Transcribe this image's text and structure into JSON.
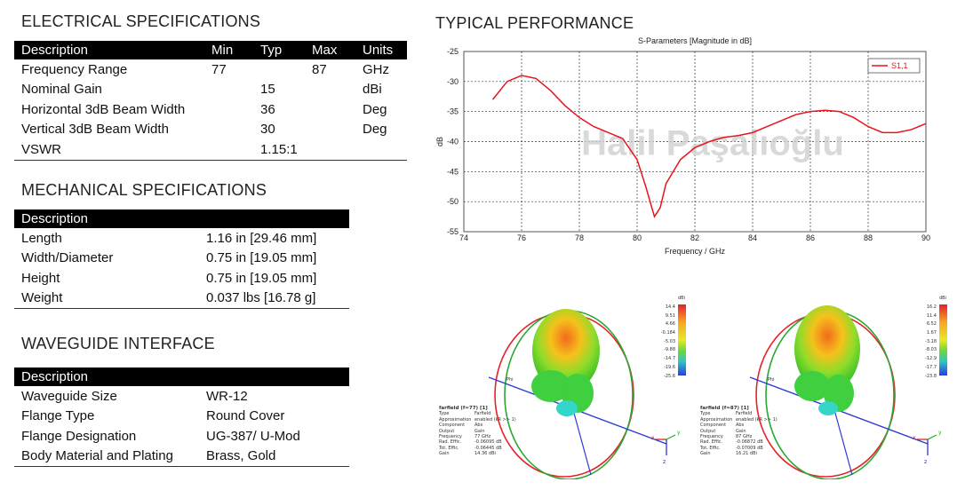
{
  "electrical": {
    "title": "ELECTRICAL SPECIFICATIONS",
    "headers": [
      "Description",
      "Min",
      "Typ",
      "Max",
      "Units"
    ],
    "rows": [
      [
        "Frequency Range",
        "77",
        "",
        "87",
        "GHz"
      ],
      [
        "Nominal Gain",
        "",
        "15",
        "",
        "dBi"
      ],
      [
        "Horizontal 3dB Beam Width",
        "",
        "36",
        "",
        "Deg"
      ],
      [
        "Vertical 3dB Beam Width",
        "",
        "30",
        "",
        "Deg"
      ],
      [
        "VSWR",
        "",
        "1.15:1",
        "",
        ""
      ]
    ]
  },
  "mechanical": {
    "title": "MECHANICAL SPECIFICATIONS",
    "header": "Description",
    "rows": [
      [
        "Length",
        "1.16 in [29.46 mm]"
      ],
      [
        "Width/Diameter",
        "0.75 in [19.05 mm]"
      ],
      [
        "Height",
        "0.75 in [19.05 mm]"
      ],
      [
        "Weight",
        "0.037 lbs [16.78 g]"
      ]
    ]
  },
  "waveguide": {
    "title": "WAVEGUIDE INTERFACE",
    "header": "Description",
    "rows": [
      [
        "Waveguide Size",
        "WR-12"
      ],
      [
        "Flange Type",
        "Round Cover"
      ],
      [
        "Flange Designation",
        "UG-387/ U-Mod"
      ],
      [
        "Body Material and Plating",
        "Brass, Gold"
      ]
    ]
  },
  "performance": {
    "title": "TYPICAL PERFORMANCE",
    "watermark": "Halil Paşalıoğlu"
  },
  "chart_data": {
    "type": "line",
    "title": "S-Parameters [Magnitude in dB]",
    "xlabel": "Frequency / GHz",
    "ylabel": "dB",
    "xlim": [
      74,
      90
    ],
    "ylim": [
      -55,
      -25
    ],
    "xticks": [
      74,
      76,
      78,
      80,
      82,
      84,
      86,
      88,
      90
    ],
    "yticks": [
      -25,
      -30,
      -35,
      -40,
      -45,
      -50,
      -55
    ],
    "grid": true,
    "legend": "top-right",
    "series": [
      {
        "name": "S1,1",
        "color": "#e8141b",
        "x": [
          75,
          75.5,
          76,
          76.5,
          77,
          77.5,
          78,
          78.5,
          79,
          79.5,
          80,
          80.3,
          80.6,
          80.8,
          81,
          81.5,
          82,
          82.5,
          83,
          83.5,
          84,
          84.5,
          85,
          85.5,
          86,
          86.5,
          87,
          87.5,
          88,
          88.5,
          89,
          89.5,
          90
        ],
        "y": [
          -33,
          -30,
          -29,
          -29.5,
          -31.5,
          -34,
          -36,
          -37.5,
          -38.5,
          -39.5,
          -43,
          -47.5,
          -52.5,
          -51,
          -47,
          -43,
          -41,
          -40,
          -39.3,
          -39,
          -38.5,
          -37.5,
          -36.5,
          -35.5,
          -35,
          -34.8,
          -35,
          -36,
          -37.5,
          -38.5,
          -38.5,
          -38,
          -37
        ]
      }
    ]
  },
  "patterns": [
    {
      "scale": {
        "unit": "dBi",
        "values": [
          "14.4",
          "9.51",
          "4.66",
          "-0.184",
          "-5.03",
          "-9.88",
          "-14.7",
          "-19.6",
          "-25.6"
        ]
      },
      "farfield": {
        "title": "farfield (f=77) [1]",
        "rows": [
          [
            "Type",
            "Farfield"
          ],
          [
            "Approximation",
            "enabled (kR >> 1)"
          ],
          [
            "Component",
            "Abs"
          ],
          [
            "Output",
            "Gain"
          ],
          [
            "Frequency",
            "77 GHz"
          ],
          [
            "Rad. Effic.",
            "-0.06095 dB"
          ],
          [
            "Tot. Effic.",
            "-0.06445 dB"
          ],
          [
            "Gain",
            "14.36 dBi"
          ]
        ]
      },
      "axes": {
        "x": "x",
        "y": "y",
        "z": "z",
        "theta": "Phi"
      }
    },
    {
      "scale": {
        "unit": "dBi",
        "values": [
          "16.2",
          "11.4",
          "6.52",
          "1.67",
          "-3.18",
          "-8.03",
          "-12.9",
          "-17.7",
          "-23.8"
        ]
      },
      "farfield": {
        "title": "farfield (f=87) [1]",
        "rows": [
          [
            "Type",
            "Farfield"
          ],
          [
            "Approximation",
            "enabled (kR >> 1)"
          ],
          [
            "Component",
            "Abs"
          ],
          [
            "Output",
            "Gain"
          ],
          [
            "Frequency",
            "87 GHz"
          ],
          [
            "Rad. Effic.",
            "-0.06872 dB"
          ],
          [
            "Tot. Effic.",
            "-0.07009 dB"
          ],
          [
            "Gain",
            "16.21 dBi"
          ]
        ]
      },
      "axes": {
        "x": "x",
        "y": "y",
        "z": "z",
        "theta": "Phi"
      }
    }
  ]
}
